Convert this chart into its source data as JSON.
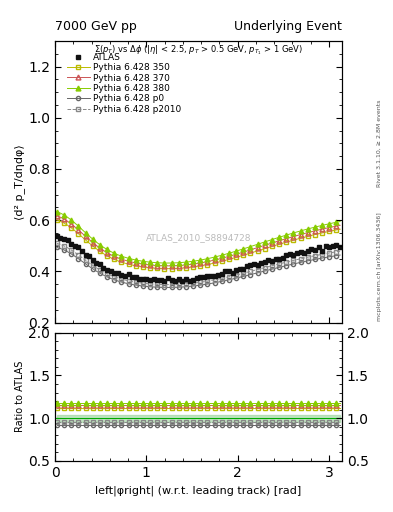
{
  "title_left": "7000 GeV pp",
  "title_right": "Underlying Event",
  "subtitle": "Σ(p_T) vs Δφ (|η| < 2.5, p_T > 0.5 GeV, p_{T_1} > 1 GeV)",
  "xlabel": "left|φright| (w.r.t. leading track) [rad]",
  "ylabel": "⟨d² p_T/dηdφ⟩",
  "ylabel_ratio": "Ratio to ATLAS",
  "right_label": "Rivet 3.1.10, ≥ 2.8M events",
  "right_label2": "mcplots.cern.ch [arXiv:1306.3436]",
  "watermark": "ATLAS_2010_S8894728",
  "xlim": [
    0,
    3.14159
  ],
  "ylim_main": [
    0.2,
    1.3
  ],
  "ylim_ratio": [
    0.5,
    2.0
  ],
  "yticks_main": [
    0.2,
    0.4,
    0.6,
    0.8,
    1.0,
    1.2
  ],
  "yticks_ratio": [
    0.5,
    1.0,
    1.5,
    2.0
  ],
  "xticks": [
    0,
    1,
    2,
    3
  ],
  "series": [
    {
      "label": "ATLAS",
      "color": "#111111",
      "marker": "s",
      "markersize": 3.5,
      "linestyle": "none",
      "fillstyle": "full",
      "zorder": 10
    },
    {
      "label": "Pythia 6.428 350",
      "color": "#bbbb00",
      "marker": "s",
      "markersize": 3.5,
      "linestyle": "-",
      "fillstyle": "none",
      "zorder": 5,
      "ratio_val": 1.12
    },
    {
      "label": "Pythia 6.428 370",
      "color": "#cc5555",
      "marker": "^",
      "markersize": 3.5,
      "linestyle": "-",
      "fillstyle": "none",
      "zorder": 5,
      "ratio_val": 1.15
    },
    {
      "label": "Pythia 6.428 380",
      "color": "#88cc00",
      "marker": "^",
      "markersize": 3.5,
      "linestyle": "-",
      "fillstyle": "full",
      "zorder": 5,
      "ratio_val": 1.18
    },
    {
      "label": "Pythia 6.428 p0",
      "color": "#666666",
      "marker": "o",
      "markersize": 3,
      "linestyle": "-",
      "fillstyle": "none",
      "zorder": 4,
      "ratio_val": 0.92
    },
    {
      "label": "Pythia 6.428 p2010",
      "color": "#888888",
      "marker": "s",
      "markersize": 3,
      "linestyle": "--",
      "fillstyle": "none",
      "zorder": 4,
      "ratio_val": 0.95
    }
  ],
  "n_points": 80
}
